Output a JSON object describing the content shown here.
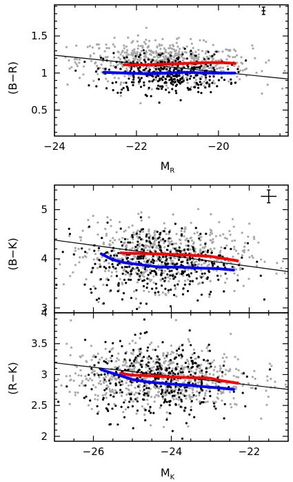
{
  "chart_data": [
    {
      "type": "scatter",
      "panel": "top",
      "xlabel": "M",
      "xlabel_sub": "R",
      "ylabel": "(B−R)",
      "xlim": [
        -24,
        -18.3
      ],
      "ylim": [
        0.15,
        1.92
      ],
      "xticks": [
        -24,
        -22,
        -20
      ],
      "xticklabels": [
        "−24",
        "−22",
        "−20"
      ],
      "yticks": [
        0.5,
        1,
        1.5
      ],
      "yticklabels": [
        "0.5",
        "1",
        "1.5"
      ],
      "scatter_grey": {
        "n": 620,
        "cx": -21.3,
        "sx": 1.05,
        "cy_slope": -0.025,
        "cy_at": 1.14,
        "sy": 0.14
      },
      "scatter_black": {
        "n": 360,
        "cx": -21.3,
        "sx": 0.75,
        "cy_at": 1.0,
        "sy": 0.14
      },
      "fit_line": {
        "x": [
          -24,
          -18.3
        ],
        "y": [
          1.24,
          0.92
        ]
      },
      "series": [
        {
          "color": "#ff0000",
          "x": [
            -22.3,
            -21.8,
            -21.3,
            -20.8,
            -20.3,
            -19.9,
            -19.6
          ],
          "y": [
            1.11,
            1.11,
            1.12,
            1.13,
            1.14,
            1.14,
            1.13
          ]
        },
        {
          "color": "#0000ff",
          "x": [
            -22.8,
            -22.3,
            -21.8,
            -21.3,
            -20.8,
            -20.3,
            -19.8,
            -19.6
          ],
          "y": [
            1.01,
            1.0,
            0.99,
            1.0,
            1.01,
            1.0,
            1.0,
            1.0
          ]
        }
      ],
      "errorbar": {
        "x": -18.9,
        "y": 1.84,
        "dx": 0.05,
        "dy": 0.05
      }
    },
    {
      "type": "scatter",
      "panel": "middle",
      "xlabel": "",
      "ylabel": "(B−K)",
      "xlim": [
        -27,
        -21
      ],
      "ylim": [
        2.9,
        5.5
      ],
      "xticks": [
        -26,
        -24,
        -22
      ],
      "xticklabels": [],
      "yticks": [
        3,
        4,
        5
      ],
      "yticklabels": [
        "3",
        "4",
        "5"
      ],
      "scatter_grey": {
        "n": 640,
        "cx": -24.3,
        "sx": 1.15,
        "cy_at": 4.05,
        "sy": 0.33
      },
      "scatter_black": {
        "n": 380,
        "cx": -24.3,
        "sx": 0.95,
        "cy_at": 3.95,
        "sy": 0.36
      },
      "fit_line": {
        "x": [
          -27,
          -21
        ],
        "y": [
          4.38,
          3.74
        ]
      },
      "series": [
        {
          "color": "#ff0000",
          "x": [
            -25.3,
            -25.0,
            -24.5,
            -24.0,
            -23.5,
            -23.0,
            -22.7,
            -22.3
          ],
          "y": [
            4.12,
            4.11,
            4.1,
            4.09,
            4.07,
            4.05,
            4.01,
            3.96
          ]
        },
        {
          "color": "#0000ff",
          "x": [
            -25.8,
            -25.5,
            -25.2,
            -24.8,
            -24.3,
            -23.8,
            -23.3,
            -22.8,
            -22.4
          ],
          "y": [
            4.1,
            3.98,
            3.92,
            3.88,
            3.83,
            3.83,
            3.81,
            3.8,
            3.77
          ]
        }
      ],
      "errorbar": {
        "x": -21.5,
        "y": 5.27,
        "dx": 0.2,
        "dy": 0.13
      }
    },
    {
      "type": "scatter",
      "panel": "bottom",
      "xlabel": "M",
      "xlabel_sub": "K",
      "ylabel": "(R−K)",
      "xlim": [
        -27,
        -21
      ],
      "ylim": [
        1.92,
        4.0
      ],
      "xticks": [
        -26,
        -24,
        -22
      ],
      "xticklabels": [
        "−26",
        "−24",
        "−22"
      ],
      "yticks": [
        2,
        2.5,
        3,
        3.5,
        4
      ],
      "yticklabels": [
        "2",
        "2.5",
        "3",
        "3.5",
        "4"
      ],
      "scatter_grey": {
        "n": 660,
        "cx": -24.3,
        "sx": 1.15,
        "cy_at": 2.95,
        "sy": 0.26
      },
      "scatter_black": {
        "n": 380,
        "cx": -24.3,
        "sx": 0.95,
        "cy_at": 2.9,
        "sy": 0.3
      },
      "fit_line": {
        "x": [
          -27,
          -21
        ],
        "y": [
          3.19,
          2.76
        ]
      },
      "series": [
        {
          "color": "#ff0000",
          "x": [
            -25.3,
            -25.0,
            -24.5,
            -24.0,
            -23.5,
            -23.0,
            -22.7,
            -22.3
          ],
          "y": [
            3.02,
            2.99,
            2.98,
            2.96,
            2.95,
            2.94,
            2.9,
            2.86
          ]
        },
        {
          "color": "#0000ff",
          "x": [
            -25.8,
            -25.4,
            -25.0,
            -24.6,
            -24.1,
            -23.6,
            -23.1,
            -22.7,
            -22.4
          ],
          "y": [
            3.08,
            3.0,
            2.92,
            2.88,
            2.85,
            2.83,
            2.8,
            2.78,
            2.76
          ]
        }
      ]
    }
  ],
  "colors": {
    "grey_points": "#a8a8a8",
    "black_points": "#000000",
    "red_curve": "#ff0000",
    "blue_curve": "#0000ff"
  }
}
